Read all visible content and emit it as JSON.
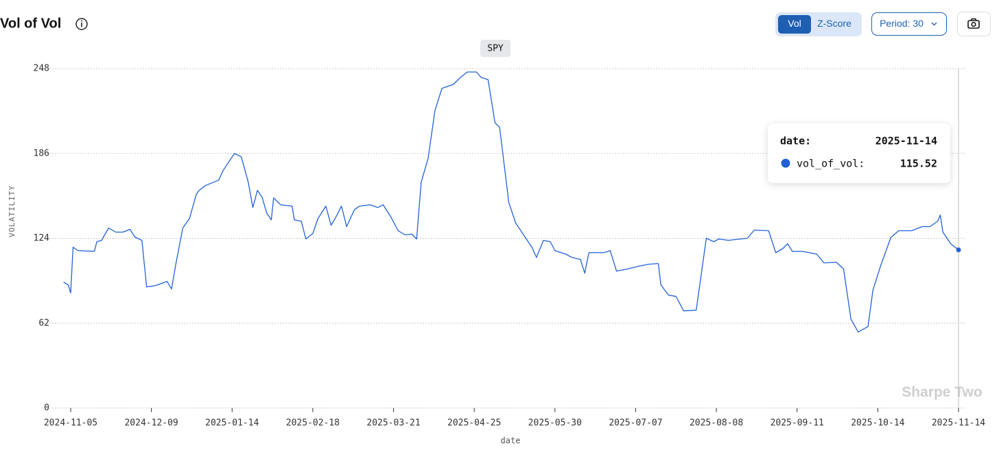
{
  "header": {
    "title": "Vol of Vol",
    "toggle": [
      "Vol",
      "Z-Score"
    ],
    "period": "Period: 30"
  },
  "chart_data": {
    "type": "line",
    "legend": "SPY",
    "watermark": "Sharpe Two",
    "x_label": "date",
    "y_label": "VOLATILITY",
    "x": [
      "2024-11-02",
      "2024-11-04",
      "2024-11-05",
      "2024-11-06",
      "2024-11-08",
      "2024-11-15",
      "2024-11-16",
      "2024-11-18",
      "2024-11-21",
      "2024-11-24",
      "2024-11-27",
      "2024-11-30",
      "2024-12-02",
      "2024-12-05",
      "2024-12-07",
      "2024-12-11",
      "2024-12-16",
      "2024-12-18",
      "2024-12-20",
      "2024-12-23",
      "2024-12-26",
      "2024-12-29",
      "2024-12-30",
      "2025-01-02",
      "2025-01-08",
      "2025-01-10",
      "2025-01-12",
      "2025-01-15",
      "2025-01-18",
      "2025-01-21",
      "2025-01-23",
      "2025-01-25",
      "2025-01-27",
      "2025-01-29",
      "2025-01-31",
      "2025-02-01",
      "2025-02-04",
      "2025-02-09",
      "2025-02-10",
      "2025-02-13",
      "2025-02-15",
      "2025-02-18",
      "2025-02-20",
      "2025-02-23",
      "2025-02-25",
      "2025-02-27",
      "2025-03-01",
      "2025-03-03",
      "2025-03-06",
      "2025-03-08",
      "2025-03-12",
      "2025-03-15",
      "2025-03-17",
      "2025-03-20",
      "2025-03-23",
      "2025-03-26",
      "2025-03-29",
      "2025-03-31",
      "2025-04-02",
      "2025-04-05",
      "2025-04-08",
      "2025-04-11",
      "2025-04-16",
      "2025-04-19",
      "2025-04-22",
      "2025-04-26",
      "2025-04-28",
      "2025-05-01",
      "2025-05-04",
      "2025-05-06",
      "2025-05-10",
      "2025-05-13",
      "2025-05-17",
      "2025-05-20",
      "2025-05-22",
      "2025-05-25",
      "2025-05-28",
      "2025-05-30",
      "2025-06-04",
      "2025-06-07",
      "2025-06-11",
      "2025-06-13",
      "2025-06-15",
      "2025-06-22",
      "2025-06-25",
      "2025-06-28",
      "2025-07-03",
      "2025-07-08",
      "2025-07-12",
      "2025-07-16",
      "2025-07-17",
      "2025-07-20",
      "2025-07-23",
      "2025-07-26",
      "2025-07-31",
      "2025-08-04",
      "2025-08-07",
      "2025-08-09",
      "2025-08-13",
      "2025-08-21",
      "2025-08-24",
      "2025-08-30",
      "2025-09-02",
      "2025-09-05",
      "2025-09-07",
      "2025-09-09",
      "2025-09-13",
      "2025-09-19",
      "2025-09-22",
      "2025-09-27",
      "2025-09-30",
      "2025-10-03",
      "2025-10-06",
      "2025-10-10",
      "2025-10-12",
      "2025-10-15",
      "2025-10-19",
      "2025-10-22",
      "2025-10-27",
      "2025-10-31",
      "2025-11-03",
      "2025-11-06",
      "2025-11-07",
      "2025-11-08",
      "2025-11-11",
      "2025-11-14"
    ],
    "series": [
      {
        "name": "SPY",
        "color": "#2160d8",
        "values": [
          92,
          90,
          84,
          117.5,
          115,
          114.5,
          121.5,
          122.5,
          131.5,
          128.5,
          128.5,
          130.5,
          125,
          122.5,
          88.5,
          89.5,
          92.5,
          87,
          106,
          131.5,
          138.5,
          156,
          158.5,
          162.5,
          166.5,
          173.5,
          178.5,
          186,
          183.5,
          165,
          146.5,
          159,
          154,
          142.5,
          137.5,
          153.5,
          148.5,
          147.5,
          137.5,
          136.5,
          123.5,
          127.5,
          138.5,
          147.5,
          133.5,
          140,
          147.5,
          132.5,
          145,
          147.5,
          148.5,
          146.5,
          148.5,
          139.5,
          129.5,
          126.5,
          127,
          123.5,
          165,
          182.5,
          217.5,
          233.5,
          236.5,
          241.5,
          245.5,
          245.5,
          241.5,
          240,
          208.5,
          205,
          150,
          135,
          125,
          117.5,
          110,
          122.5,
          121.5,
          115,
          112.5,
          110,
          108.5,
          98.5,
          113.5,
          113.5,
          115,
          100,
          101.5,
          103.5,
          105,
          105.5,
          90,
          82.5,
          81.5,
          71,
          71.5,
          124,
          121.5,
          123.5,
          122.5,
          124,
          130,
          129.5,
          113.5,
          116.5,
          120,
          114.5,
          114.5,
          112.5,
          106,
          106.5,
          101.5,
          65,
          55.5,
          59.5,
          86,
          103.5,
          124.5,
          129.5,
          129.5,
          132.5,
          132.5,
          136.5,
          141,
          128.5,
          120,
          115.52
        ]
      }
    ],
    "xticks": [
      "2024-11-05",
      "2024-12-09",
      "2025-01-14",
      "2025-02-18",
      "2025-03-21",
      "2025-04-25",
      "2025-05-30",
      "2025-07-07",
      "2025-08-08",
      "2025-09-11",
      "2025-10-14",
      "2025-11-14"
    ],
    "ylim": [
      0,
      248
    ],
    "yticks": [
      0,
      62,
      124,
      186,
      248
    ],
    "grid": true,
    "tooltip": {
      "date_label": "date:",
      "value_label": "vol_of_vol:"
    }
  }
}
